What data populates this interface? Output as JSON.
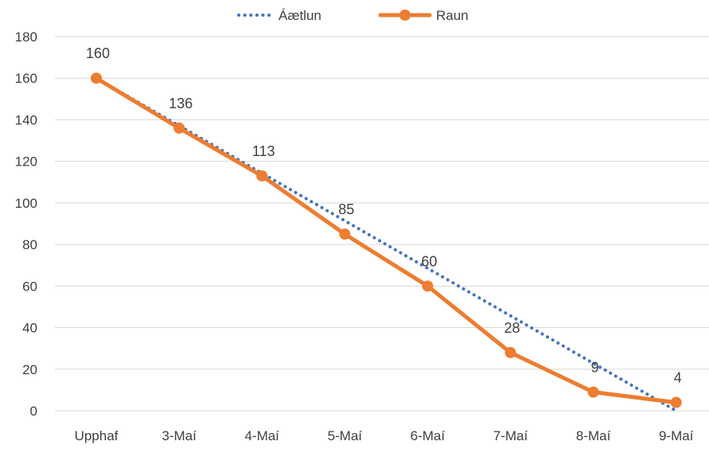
{
  "chart_data": {
    "type": "line",
    "title": "",
    "xlabel": "",
    "ylabel": "",
    "categories": [
      "Upphaf",
      "3-Maí",
      "4-Maí",
      "5-Maí",
      "6-Maí",
      "7-Maí",
      "8-Maí",
      "9-Maí"
    ],
    "ylim": [
      0,
      180
    ],
    "yticks": [
      0,
      20,
      40,
      60,
      80,
      100,
      120,
      140,
      160,
      180
    ],
    "grid": true,
    "legend_position": "top",
    "series": [
      {
        "name": "Áætlun",
        "style": "dotted",
        "color": "#4472C4",
        "values": [
          160,
          137.14,
          114.29,
          91.43,
          68.57,
          45.71,
          22.86,
          0
        ]
      },
      {
        "name": "Raun",
        "style": "solid-markers",
        "color": "#ED7D31",
        "values": [
          160,
          136,
          113,
          85,
          60,
          28,
          9,
          4
        ],
        "data_labels": [
          "160",
          "136",
          "113",
          "85",
          "60",
          "28",
          "9",
          "4"
        ]
      }
    ]
  }
}
